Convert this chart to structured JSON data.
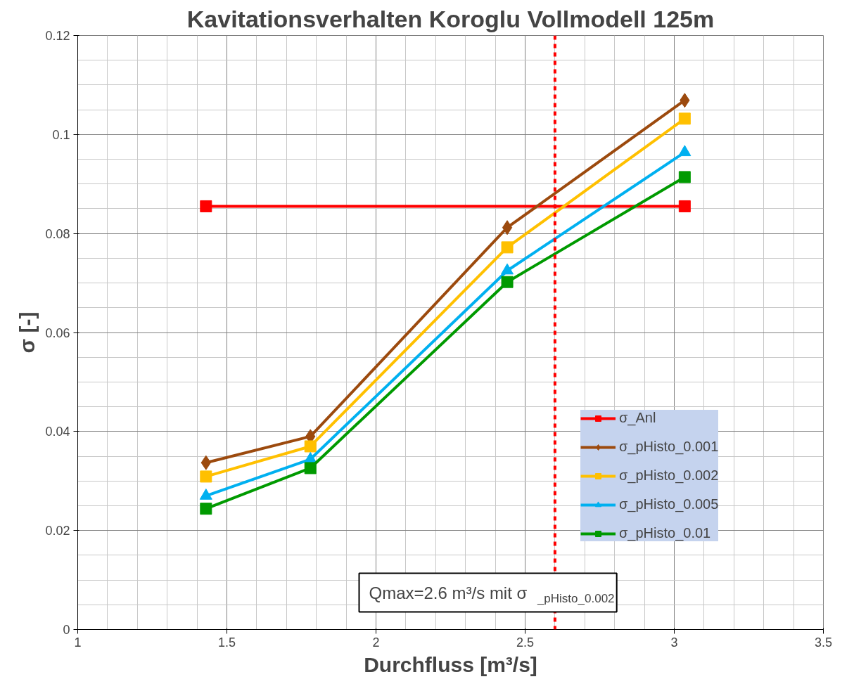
{
  "chart_data": {
    "type": "line",
    "title": "Kavitationsverhalten Koroglu Vollmodell 125m",
    "xlabel": "Durchfluss [m³/s]",
    "ylabel": "σ [-]",
    "x": [
      1.43,
      1.78,
      2.44,
      3.035
    ],
    "series": [
      {
        "name": "σ_Anl",
        "color": "#ff0000",
        "marker": "square",
        "x": [
          1.43,
          3.035
        ],
        "values": [
          0.0855,
          0.0855
        ]
      },
      {
        "name": "σ_pHisto_0.001",
        "color": "#9c4a0e",
        "marker": "diamond",
        "values": [
          0.0337,
          0.039,
          0.0812,
          0.1069
        ]
      },
      {
        "name": "σ_pHisto_0.002",
        "color": "#ffc000",
        "marker": "square",
        "values": [
          0.0309,
          0.037,
          0.0772,
          0.1032
        ]
      },
      {
        "name": "σ_pHisto_0.005",
        "color": "#00b0f0",
        "marker": "triangle",
        "values": [
          0.027,
          0.0344,
          0.0725,
          0.0964
        ]
      },
      {
        "name": "σ_pHisto_0.01",
        "color": "#009a00",
        "marker": "square",
        "values": [
          0.0244,
          0.0326,
          0.0702,
          0.0914
        ]
      }
    ],
    "xlim": [
      1,
      3.5
    ],
    "xticks": [
      1,
      1.5,
      2,
      2.5,
      3,
      3.5
    ],
    "ylim": [
      0,
      0.12
    ],
    "yticks": [
      0,
      0.02,
      0.04,
      0.06,
      0.08,
      0.1,
      0.12
    ],
    "grid": true,
    "legend": "right",
    "line_style": "solid",
    "ref_lines": [
      {
        "axis": "x",
        "value": 2.6,
        "color": "#ff0000",
        "line_style": "dashed"
      }
    ],
    "annotations": [
      "Qmax=2.6 m³/s mit σ$_{_pHisto_0.002}$"
    ]
  }
}
